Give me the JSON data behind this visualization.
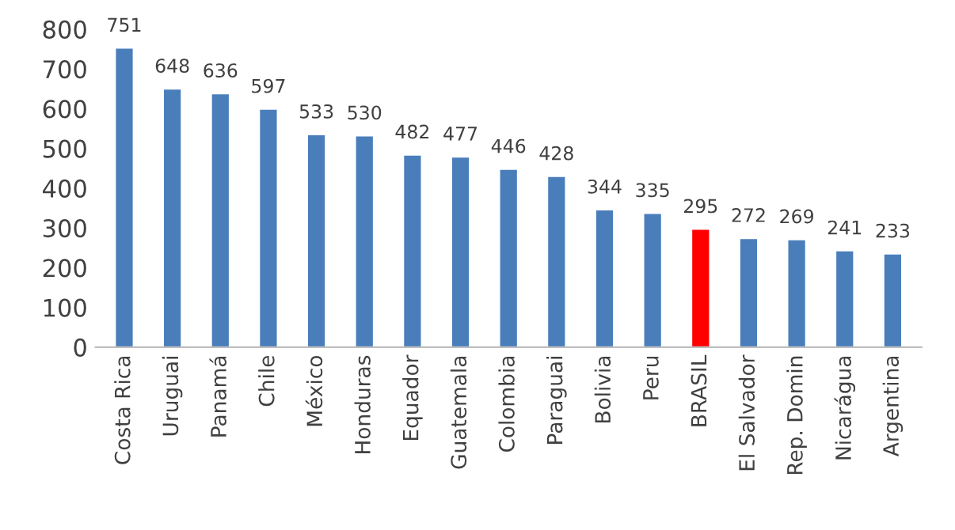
{
  "chart_data": {
    "type": "bar",
    "categories": [
      "Costa Rica",
      "Uruguai",
      "Panamá",
      "Chile",
      "México",
      "Honduras",
      "Equador",
      "Guatemala",
      "Colombia",
      "Paraguai",
      "Bolivia",
      "Peru",
      "BRASIL",
      "El Salvador",
      "Rep. Domin",
      "Nicarágua",
      "Argentina"
    ],
    "values": [
      751,
      648,
      636,
      597,
      533,
      530,
      482,
      477,
      446,
      428,
      344,
      335,
      295,
      272,
      269,
      241,
      233
    ],
    "colors": [
      "#4a7ebb",
      "#4a7ebb",
      "#4a7ebb",
      "#4a7ebb",
      "#4a7ebb",
      "#4a7ebb",
      "#4a7ebb",
      "#4a7ebb",
      "#4a7ebb",
      "#4a7ebb",
      "#4a7ebb",
      "#4a7ebb",
      "#ff0000",
      "#4a7ebb",
      "#4a7ebb",
      "#4a7ebb",
      "#4a7ebb"
    ],
    "ylim": [
      0,
      800
    ],
    "yticks": [
      0,
      100,
      200,
      300,
      400,
      500,
      600,
      700,
      800
    ],
    "data_labels": true,
    "grid": false,
    "legend": false
  }
}
